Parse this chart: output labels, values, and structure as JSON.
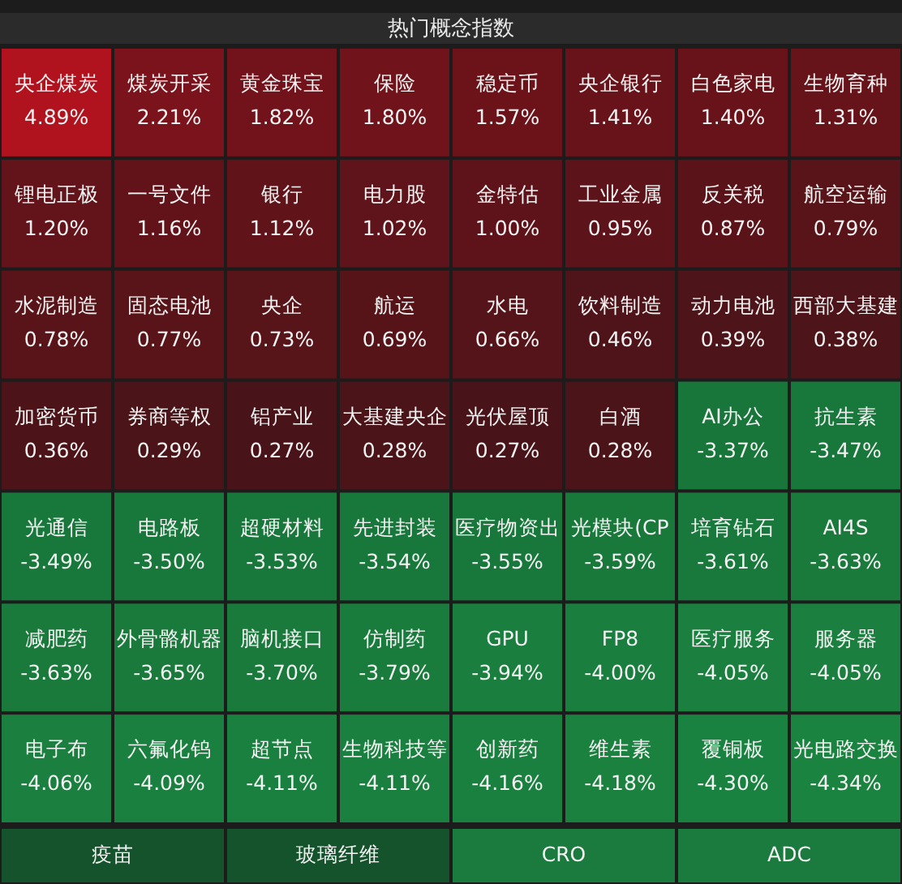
{
  "chart_data": [
    {
      "type": "other",
      "title": "热门概念指数",
      "categories": [
        "央企煤炭",
        "煤炭开采",
        "黄金珠宝",
        "保险",
        "稳定币",
        "央企银行",
        "白色家电",
        "生物育种",
        "锂电正极",
        "一号文件",
        "银行",
        "电力股",
        "金特估",
        "工业金属",
        "反关税",
        "航空运输",
        "水泥制造",
        "固态电池",
        "央企",
        "航运",
        "水电",
        "饮料制造",
        "动力电池",
        "西部大基建",
        "加密货币",
        "券商等权",
        "铝产业",
        "大基建央企",
        "光伏屋顶",
        "白酒",
        "AI办公",
        "抗生素",
        "光通信",
        "电路板",
        "超硬材料",
        "先进封装",
        "医疗物资出",
        "光模块(CP",
        "培育钻石",
        "AI4S",
        "减肥药",
        "外骨骼机器",
        "脑机接口",
        "仿制药",
        "GPU",
        "FP8",
        "医疗服务",
        "服务器",
        "电子布",
        "六氟化钨",
        "超节点",
        "生物科技等",
        "创新药",
        "维生素",
        "覆铜板",
        "光电路交换"
      ],
      "values": [
        4.89,
        2.21,
        1.82,
        1.8,
        1.57,
        1.41,
        1.4,
        1.31,
        1.2,
        1.16,
        1.12,
        1.02,
        1.0,
        0.95,
        0.87,
        0.79,
        0.78,
        0.77,
        0.73,
        0.69,
        0.66,
        0.46,
        0.39,
        0.38,
        0.36,
        0.29,
        0.27,
        0.28,
        0.27,
        0.28,
        -3.37,
        -3.47,
        -3.49,
        -3.5,
        -3.53,
        -3.54,
        -3.55,
        -3.59,
        -3.61,
        -3.63,
        -3.63,
        -3.65,
        -3.7,
        -3.79,
        -3.94,
        -4.0,
        -4.05,
        -4.05,
        -4.06,
        -4.09,
        -4.11,
        -4.11,
        -4.16,
        -4.18,
        -4.3,
        -4.34
      ],
      "value_labels": [
        "4.89%",
        "2.21%",
        "1.82%",
        "1.80%",
        "1.57%",
        "1.41%",
        "1.40%",
        "1.31%",
        "1.20%",
        "1.16%",
        "1.12%",
        "1.02%",
        "1.00%",
        "0.95%",
        "0.87%",
        "0.79%",
        "0.78%",
        "0.77%",
        "0.73%",
        "0.69%",
        "0.66%",
        "0.46%",
        "0.39%",
        "0.38%",
        "0.36%",
        "0.29%",
        "0.27%",
        "0.28%",
        "0.27%",
        "0.28%",
        "-3.37%",
        "-3.47%",
        "-3.49%",
        "-3.50%",
        "-3.53%",
        "-3.54%",
        "-3.55%",
        "-3.59%",
        "-3.61%",
        "-3.63%",
        "-3.63%",
        "-3.65%",
        "-3.70%",
        "-3.79%",
        "-3.94%",
        "-4.00%",
        "-4.05%",
        "-4.05%",
        "-4.06%",
        "-4.09%",
        "-4.11%",
        "-4.11%",
        "-4.16%",
        "-4.18%",
        "-4.30%",
        "-4.34%"
      ]
    },
    {
      "type": "other",
      "categories": [
        "疫苗",
        "玻璃纤维",
        "CRO",
        "ADC"
      ],
      "colors": [
        "#14532b",
        "#14532b",
        "#1b7a3d",
        "#1b7a3d"
      ]
    }
  ]
}
